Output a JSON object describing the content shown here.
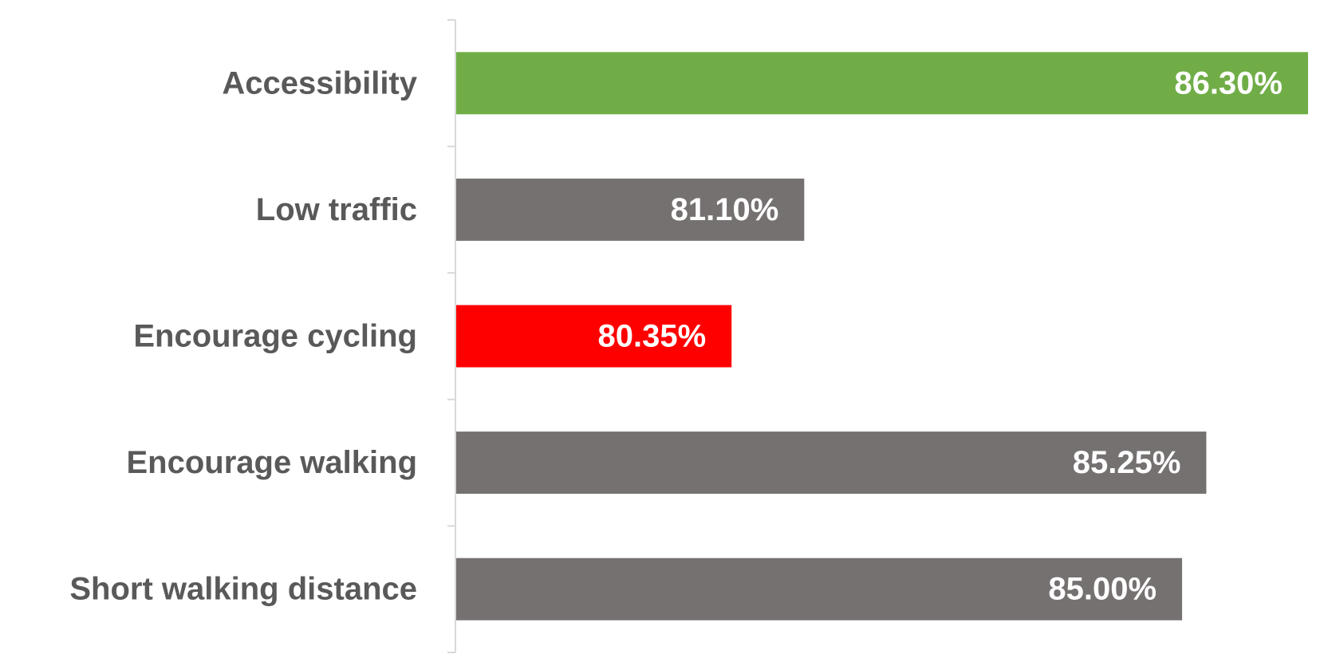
{
  "chart_data": {
    "type": "bar",
    "orientation": "horizontal",
    "categories": [
      "Accessibility",
      "Low traffic",
      "Encourage cycling",
      "Encourage walking",
      "Short walking distance"
    ],
    "values": [
      86.3,
      81.1,
      80.35,
      85.25,
      85.0
    ],
    "value_labels": [
      "86.30%",
      "81.10%",
      "80.35%",
      "85.25%",
      "85.00%"
    ],
    "bar_colors": [
      "#70ad47",
      "#767171",
      "#ff0000",
      "#767171",
      "#767171"
    ],
    "xlim": [
      77.5,
      86.3
    ],
    "unit": "%",
    "grid": false,
    "legend": "none",
    "title": "",
    "xlabel": "",
    "ylabel": ""
  }
}
